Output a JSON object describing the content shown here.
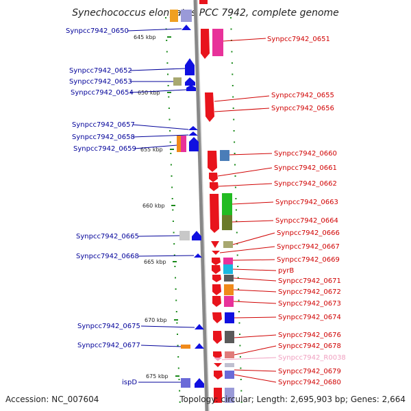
{
  "title": "Synechococcus elongatus PCC 7942, complete genome",
  "footer": {
    "accession": "Accession: NC_007604",
    "topology": "Topology: circular; Length: 2,695,903 bp; Genes: 2,664"
  },
  "kbp_ticks": [
    "645 kbp",
    "650 kbp",
    "655 kbp",
    "660 kbp",
    "665 kbp",
    "670 kbp",
    "675 kbp"
  ],
  "left_genes": [
    "Synpcc7942_0650",
    "Synpcc7942_0652",
    "Synpcc7942_0653",
    "Synpcc7942_0654",
    "Synpcc7942_0657",
    "Synpcc7942_0658",
    "Synpcc7942_0659",
    "Synpcc7942_0665",
    "Synpcc7942_0668",
    "Synpcc7942_0675",
    "Synpcc7942_0677",
    "ispD"
  ],
  "right_genes": [
    "Synpcc7942_0651",
    "Synpcc7942_0655",
    "Synpcc7942_0656",
    "Synpcc7942_0660",
    "Synpcc7942_0661",
    "Synpcc7942_0662",
    "Synpcc7942_0663",
    "Synpcc7942_0664",
    "Synpcc7942_0666",
    "Synpcc7942_0667",
    "Synpcc7942_0669",
    "pyrB",
    "Synpcc7942_0671",
    "Synpcc7942_0672",
    "Synpcc7942_0673",
    "Synpcc7942_0674",
    "Synpcc7942_0676",
    "Synpcc7942_0678",
    "Synpcc7942_R0038",
    "Synpcc7942_0679",
    "Synpcc7942_0680"
  ],
  "colors": {
    "forward_strand": "#e8141c",
    "reverse_strand": "#1010e0",
    "backbone": "#888888",
    "left_label": "#000099",
    "right_label": "#d00000",
    "rna_label": "#f0a0c0",
    "tick_dots": "#1a8a1a"
  }
}
